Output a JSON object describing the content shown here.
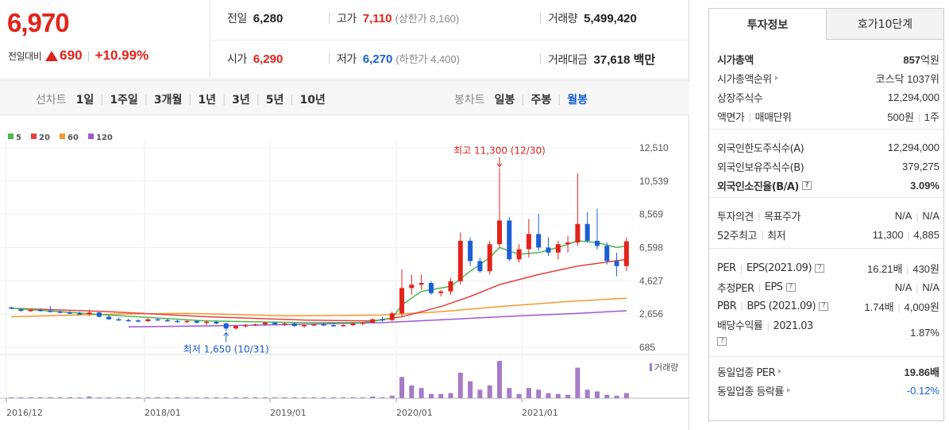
{
  "price": {
    "current": "6,970",
    "change_label": "전일대비",
    "change_amount": "690",
    "change_percent": "+10.99%"
  },
  "stats": {
    "prev_close": {
      "label": "전일",
      "value": "6,280"
    },
    "high": {
      "label": "고가",
      "value": "7,110",
      "sub": "(상한가 8,160)"
    },
    "volume": {
      "label": "거래량",
      "value": "5,499,420"
    },
    "open": {
      "label": "시가",
      "value": "6,290"
    },
    "low": {
      "label": "저가",
      "value": "6,270",
      "sub": "(하한가 4,400)"
    },
    "trade_value": {
      "label": "거래대금",
      "value": "37,618 백만"
    }
  },
  "toolbar": {
    "line_chart_label": "선차트",
    "periods": [
      "1일",
      "1주일",
      "3개월",
      "1년",
      "3년",
      "5년",
      "10년"
    ],
    "candle_chart_label": "봉차트",
    "candle_periods": [
      "일봉",
      "주봉",
      "월봉"
    ],
    "active_candle": "월봉"
  },
  "right_panel": {
    "tabs": [
      "투자정보",
      "호가10단계"
    ],
    "active_tab": "투자정보",
    "market_cap_label": "시가총액",
    "market_cap_value": "857",
    "market_cap_unit": "억원",
    "market_cap_rank_label": "시가총액순위",
    "market_cap_rank_value": "코스닥 1037위",
    "shares_label": "상장주식수",
    "shares_value": "12,294,000",
    "face_value_label": "액면가",
    "trade_unit_label": "매매단위",
    "face_value": "500원",
    "trade_unit": "1주",
    "foreign_limit_label": "외국인한도주식수(A)",
    "foreign_limit_value": "12,294,000",
    "foreign_hold_label": "외국인보유주식수(B)",
    "foreign_hold_value": "379,275",
    "foreign_ratio_label": "외국인소진율(B/A)",
    "foreign_ratio_value": "3.09%",
    "opinion_label": "투자의견",
    "target_label": "목표주가",
    "opinion_value": "N/A",
    "target_value": "N/A",
    "w52_high_label": "52주최고",
    "w52_low_label": "최저",
    "w52_high": "11,300",
    "w52_low": "4,885",
    "per_label": "PER",
    "eps_label": "EPS(2021.09)",
    "per_value": "16.21배",
    "eps_value": "430원",
    "est_per_label": "추정PER",
    "est_eps_label": "EPS",
    "est_per_value": "N/A",
    "est_eps_value": "N/A",
    "pbr_label": "PBR",
    "bps_label": "BPS (2021.09)",
    "pbr_value": "1.74배",
    "bps_value": "4,009원",
    "dividend_label": "배당수익률",
    "dividend_period": "2021.03",
    "dividend_value": "1.87%",
    "sector_per_label": "동일업종 PER",
    "sector_per_value": "19.86배",
    "sector_change_label": "동일업종 등락률",
    "sector_change_value": "-0.12%"
  },
  "chart_data": {
    "type": "candlestick",
    "legend": [
      {
        "name": "5",
        "color": "#4cb84c"
      },
      {
        "name": "20",
        "color": "#e8403c"
      },
      {
        "name": "60",
        "color": "#f29a2e"
      },
      {
        "name": "120",
        "color": "#9b59d6"
      }
    ],
    "y_ticks": [
      "12,510",
      "10,539",
      "8,569",
      "6,598",
      "4,627",
      "2,656",
      "685"
    ],
    "ylim": [
      685,
      12510
    ],
    "x_ticks": [
      "2016/12",
      "2018/01",
      "2019/01",
      "2020/01",
      "2021/01"
    ],
    "annotation_high": "최고 11,300 (12/30)",
    "annotation_low": "최저 1,650 (10/31)",
    "volume_label": "거래량",
    "candles": [
      [
        3050,
        3100,
        2950,
        3000,
        1
      ],
      [
        2950,
        3000,
        2780,
        2850,
        1
      ],
      [
        2850,
        2950,
        2780,
        2900,
        1
      ],
      [
        2900,
        3000,
        2800,
        2850,
        1
      ],
      [
        2850,
        3150,
        2750,
        2800,
        1
      ],
      [
        2800,
        2900,
        2700,
        2750,
        1
      ],
      [
        2750,
        2850,
        2650,
        2700,
        1
      ],
      [
        2700,
        2800,
        2600,
        2650,
        1
      ],
      [
        2650,
        2900,
        2550,
        2750,
        2
      ],
      [
        2750,
        2780,
        2450,
        2500,
        1
      ],
      [
        2500,
        2600,
        2300,
        2350,
        1
      ],
      [
        2350,
        2450,
        2250,
        2300,
        1
      ],
      [
        2300,
        2380,
        2200,
        2280,
        1
      ],
      [
        2280,
        2350,
        2180,
        2230,
        1
      ],
      [
        2230,
        2400,
        2200,
        2350,
        1
      ],
      [
        2350,
        2420,
        2250,
        2300,
        1
      ],
      [
        2300,
        2380,
        2200,
        2250,
        1
      ],
      [
        2250,
        2320,
        2150,
        2200,
        1
      ],
      [
        2200,
        2300,
        2120,
        2250,
        1
      ],
      [
        2250,
        2280,
        2100,
        2150,
        1
      ],
      [
        2150,
        2280,
        2000,
        2200,
        1
      ],
      [
        2200,
        2250,
        2050,
        2100,
        1
      ],
      [
        2100,
        2150,
        1650,
        1800,
        1
      ],
      [
        1800,
        2000,
        1750,
        1950,
        1
      ],
      [
        1950,
        2050,
        1850,
        2000,
        1
      ],
      [
        2000,
        2100,
        1950,
        2050,
        1
      ],
      [
        2050,
        2200,
        1950,
        2150,
        1
      ],
      [
        2150,
        2200,
        2000,
        2050,
        1
      ],
      [
        2050,
        2150,
        1950,
        2100,
        1
      ],
      [
        2100,
        2150,
        1900,
        1950,
        1
      ],
      [
        1950,
        2050,
        1850,
        2000,
        1
      ],
      [
        2000,
        2100,
        1950,
        2050,
        1
      ],
      [
        2050,
        2150,
        1950,
        2000,
        1
      ],
      [
        2000,
        2100,
        1900,
        1950,
        1
      ],
      [
        1950,
        2050,
        1900,
        2000,
        1
      ],
      [
        2000,
        2150,
        1950,
        2100,
        1
      ],
      [
        2100,
        2200,
        2000,
        2150,
        1
      ],
      [
        2150,
        2400,
        2100,
        2350,
        2
      ],
      [
        2350,
        2500,
        2200,
        2300,
        1
      ],
      [
        2300,
        2800,
        2250,
        2700,
        3
      ],
      [
        2700,
        5300,
        2500,
        4200,
        25
      ],
      [
        4200,
        5000,
        3800,
        4400,
        15
      ],
      [
        4400,
        5000,
        4100,
        4500,
        12
      ],
      [
        4500,
        4600,
        3800,
        3900,
        5
      ],
      [
        3900,
        4100,
        3700,
        4000,
        5
      ],
      [
        4000,
        4800,
        3800,
        4600,
        6
      ],
      [
        4600,
        7500,
        4400,
        7000,
        30
      ],
      [
        7000,
        7200,
        5500,
        5800,
        20
      ],
      [
        5800,
        6000,
        5100,
        5200,
        10
      ],
      [
        5200,
        7000,
        5000,
        6800,
        15
      ],
      [
        6800,
        11300,
        6600,
        8200,
        44
      ],
      [
        8200,
        8400,
        5800,
        5900,
        12
      ],
      [
        5900,
        6800,
        5700,
        6500,
        5
      ],
      [
        6500,
        8300,
        6000,
        7400,
        12
      ],
      [
        7400,
        8600,
        6400,
        6600,
        10
      ],
      [
        6600,
        7200,
        6100,
        6300,
        6
      ],
      [
        6300,
        7000,
        5900,
        6800,
        5
      ],
      [
        6800,
        7300,
        6300,
        6900,
        4
      ],
      [
        6900,
        11000,
        6700,
        8000,
        36
      ],
      [
        8000,
        8700,
        6900,
        7000,
        10
      ],
      [
        7000,
        8900,
        6500,
        6700,
        8
      ],
      [
        6700,
        6900,
        5600,
        5800,
        4
      ],
      [
        5800,
        6300,
        4900,
        5500,
        3
      ],
      [
        5500,
        7200,
        5200,
        6970,
        6
      ]
    ],
    "ma5_points": [
      [
        0,
        3000
      ],
      [
        10,
        2600
      ],
      [
        20,
        2250
      ],
      [
        30,
        2150
      ],
      [
        36,
        2150
      ],
      [
        39,
        2400
      ],
      [
        40,
        3200
      ],
      [
        42,
        4000
      ],
      [
        45,
        4300
      ],
      [
        47,
        5200
      ],
      [
        49,
        6000
      ],
      [
        50,
        6600
      ],
      [
        52,
        6200
      ],
      [
        54,
        6300
      ],
      [
        56,
        6600
      ],
      [
        58,
        7000
      ],
      [
        60,
        6900
      ],
      [
        62,
        6600
      ],
      [
        63,
        6700
      ]
    ],
    "ma20_points": [
      [
        0,
        3000
      ],
      [
        10,
        2800
      ],
      [
        20,
        2500
      ],
      [
        30,
        2300
      ],
      [
        37,
        2250
      ],
      [
        40,
        2500
      ],
      [
        44,
        3100
      ],
      [
        47,
        3700
      ],
      [
        50,
        4400
      ],
      [
        54,
        5000
      ],
      [
        58,
        5500
      ],
      [
        63,
        5900
      ]
    ],
    "ma60_points": [
      [
        0,
        2500
      ],
      [
        10,
        2650
      ],
      [
        18,
        2700
      ],
      [
        28,
        2550
      ],
      [
        38,
        2600
      ],
      [
        44,
        2800
      ],
      [
        50,
        3100
      ],
      [
        57,
        3400
      ],
      [
        63,
        3600
      ]
    ],
    "ma120_points": [
      [
        12,
        1900
      ],
      [
        20,
        1950
      ],
      [
        30,
        2050
      ],
      [
        38,
        2150
      ],
      [
        45,
        2350
      ],
      [
        52,
        2550
      ],
      [
        58,
        2700
      ],
      [
        63,
        2850
      ]
    ]
  }
}
